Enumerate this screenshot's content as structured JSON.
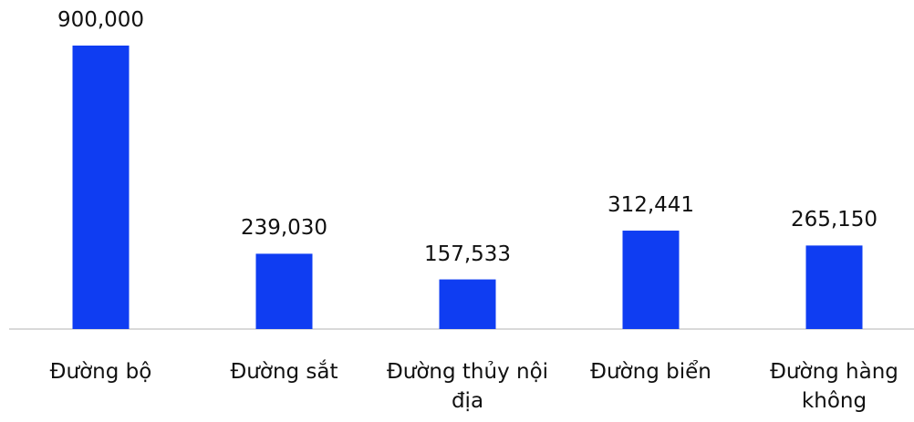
{
  "chart_data": {
    "type": "bar",
    "categories": [
      "Đường bộ",
      "Đường sắt",
      "Đường thủy nội địa",
      "Đường biển",
      "Đường hàng không"
    ],
    "values": [
      900000,
      239030,
      157533,
      312441,
      265150
    ],
    "value_labels": [
      "900,000",
      "239,030",
      "157,533",
      "312,441",
      "265,150"
    ],
    "color": "#0f3df2"
  }
}
